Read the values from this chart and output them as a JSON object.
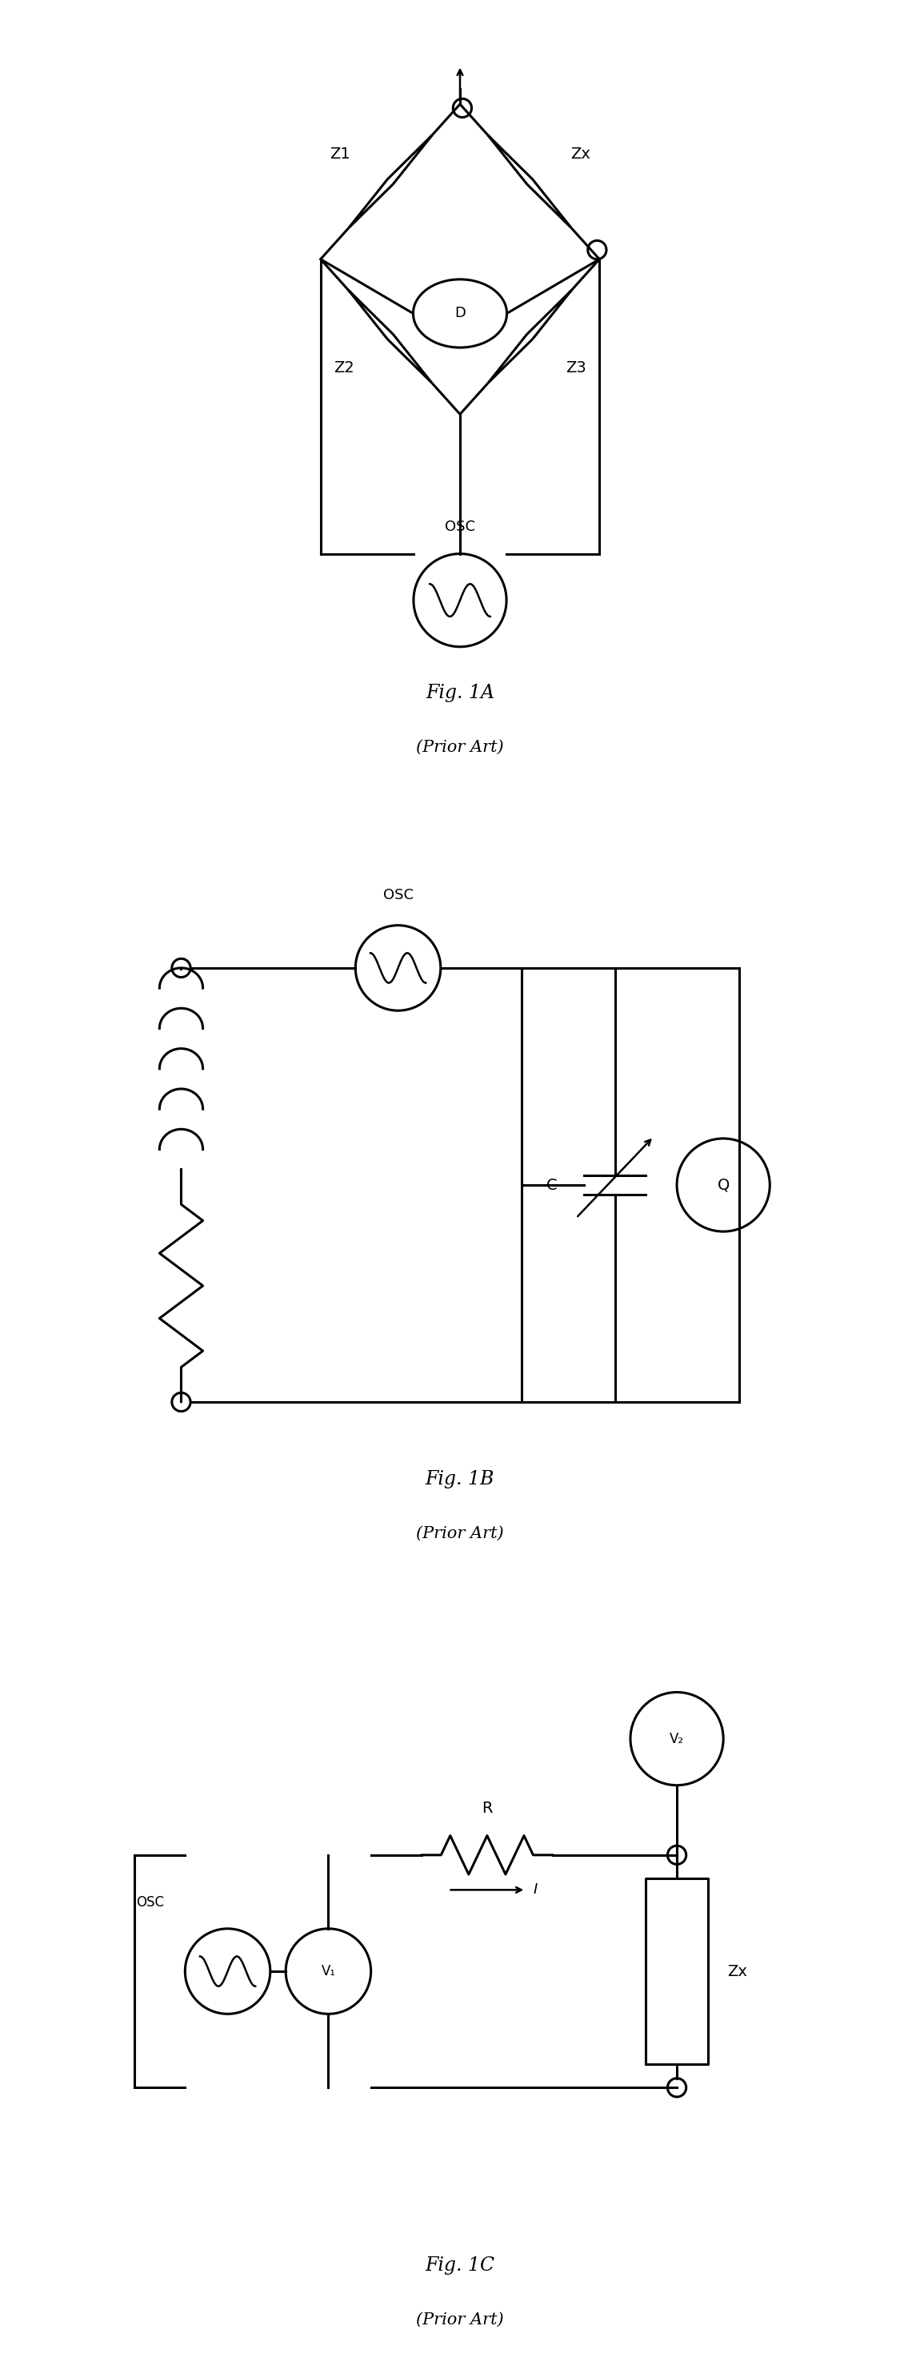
{
  "fig1a_label": "Fig. 1A",
  "fig1a_sub": "(Prior Art)",
  "fig1b_label": "Fig. 1B",
  "fig1b_sub": "(Prior Art)",
  "fig1c_label": "Fig. 1C",
  "fig1c_sub": "(Prior Art)",
  "bg_color": "#ffffff",
  "line_color": "#000000",
  "lw": 2.2
}
